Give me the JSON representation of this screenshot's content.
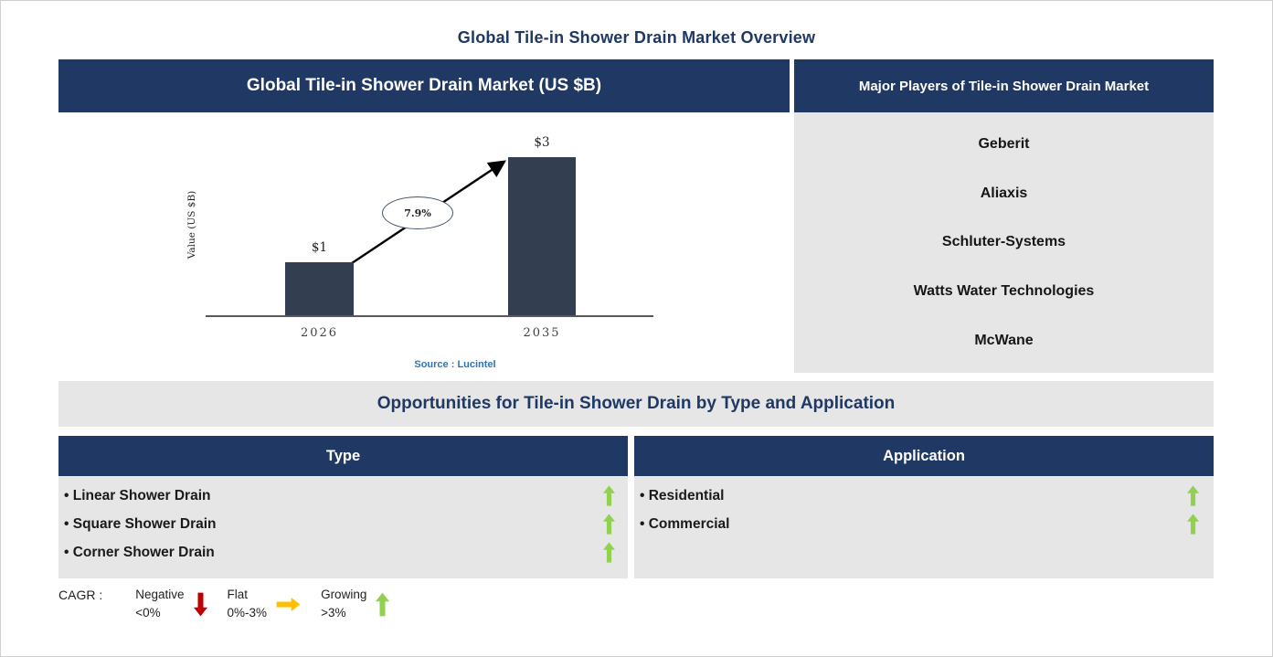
{
  "page": {
    "title": "Global Tile-in Shower Drain Market Overview"
  },
  "market_chart": {
    "header": "Global Tile-in Shower Drain Market (US $B)"
  },
  "chart_data": {
    "type": "bar",
    "title": "Global Tile-in Shower Drain Market (US $B)",
    "categories": [
      "2026",
      "2035"
    ],
    "values": [
      1,
      3
    ],
    "data_labels": [
      "$1",
      "$3"
    ],
    "ylabel": "Value (US $B)",
    "annotation": "7.9%",
    "source": "Source : Lucintel",
    "ylim": [
      0,
      3.5
    ],
    "grid": false,
    "legend_position": "none",
    "bar_color": "#333F50"
  },
  "major_players": {
    "header": "Major Players of Tile-in Shower Drain Market",
    "items": [
      "Geberit",
      "Aliaxis",
      "Schluter-Systems",
      "Watts Water Technologies",
      "McWane"
    ]
  },
  "opportunities": {
    "banner": "Opportunities for Tile-in Shower Drain by Type and Application",
    "type": {
      "header": "Type",
      "items": [
        {
          "label": "Linear Shower Drain",
          "trend": "growing"
        },
        {
          "label": "Square Shower Drain",
          "trend": "growing"
        },
        {
          "label": "Corner Shower Drain",
          "trend": "growing"
        }
      ]
    },
    "application": {
      "header": "Application",
      "items": [
        {
          "label": "Residential",
          "trend": "growing"
        },
        {
          "label": "Commercial",
          "trend": "growing"
        }
      ]
    }
  },
  "legend": {
    "label": "CAGR :",
    "items": [
      {
        "name": "Negative",
        "range": "<0%",
        "icon": "down-arrow-icon",
        "color": "#C00000"
      },
      {
        "name": "Flat",
        "range": "0%-3%",
        "icon": "right-arrow-icon",
        "color": "#FFC000"
      },
      {
        "name": "Growing",
        "range": ">3%",
        "icon": "up-arrow-icon",
        "color": "#92D050"
      }
    ]
  },
  "colors": {
    "navy": "#1F3864",
    "bar": "#333F50",
    "panel_gray": "#E7E6E6",
    "growing_green": "#92D050",
    "negative_red": "#C00000",
    "flat_yellow": "#FFC000",
    "source_blue": "#2E74B5"
  }
}
